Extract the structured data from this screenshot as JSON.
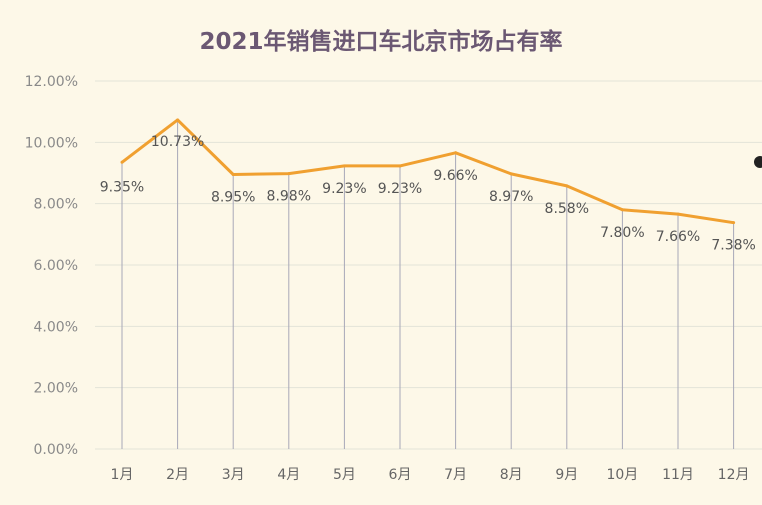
{
  "chart_data": {
    "type": "line",
    "title": "2021年销售进口车北京市场占有率",
    "categories": [
      "1月",
      "2月",
      "3月",
      "4月",
      "5月",
      "6月",
      "7月",
      "8月",
      "9月",
      "10月",
      "11月",
      "12月"
    ],
    "series": [
      {
        "values": [
          9.35,
          10.73,
          8.95,
          8.98,
          9.23,
          9.23,
          9.66,
          8.97,
          8.58,
          7.8,
          7.66,
          7.38
        ],
        "labels": [
          "9.35%",
          "10.73%",
          "8.95%",
          "8.98%",
          "9.23%",
          "9.23%",
          "9.66%",
          "8.97%",
          "8.58%",
          "7.80%",
          "7.66%",
          "7.38%"
        ]
      }
    ],
    "y_ticks": [
      "0.00%",
      "2.00%",
      "4.00%",
      "6.00%",
      "8.00%",
      "10.00%",
      "12.00%"
    ],
    "ylim": [
      0,
      12
    ],
    "y_unit": "percent",
    "grid": true,
    "colors": {
      "line": "#f0a030",
      "grid": "#e3e3d8",
      "drop_line": "#a8a8b8",
      "title": "#6b5873",
      "background": "#fdf8e8"
    }
  }
}
